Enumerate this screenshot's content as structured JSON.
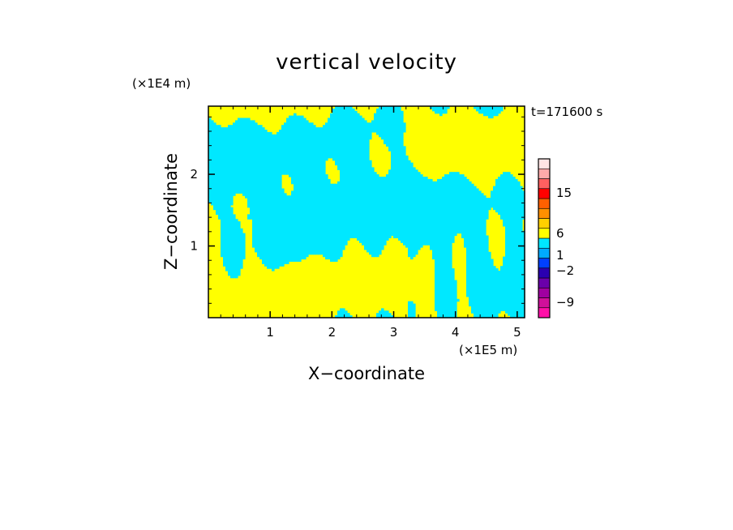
{
  "chart_data": {
    "type": "heatmap",
    "title": "vertical velocity",
    "xlabel": "X−coordinate",
    "ylabel": "Z−coordinate",
    "x_unit": "(×1E5 m)",
    "y_unit": "(×1E4 m)",
    "time_label": "t=171600 s",
    "xlim": [
      0,
      5.12
    ],
    "ylim": [
      0,
      2.95
    ],
    "xticks": [
      1,
      2,
      3,
      4,
      5
    ],
    "yticks": [
      1,
      2
    ],
    "x_tick_labels": [
      "1",
      "2",
      "3",
      "4",
      "5"
    ],
    "y_tick_labels": [
      "1",
      "2"
    ],
    "grid": false,
    "field_description_colors": {
      "upward": "#ffff00",
      "downward": "#00e8ff"
    },
    "colorbar": {
      "bands": [
        {
          "color": "#ff10a8"
        },
        {
          "color": "#d0109a"
        },
        {
          "color": "#a000a0"
        },
        {
          "color": "#6a00aa"
        },
        {
          "color": "#2a00b0"
        },
        {
          "color": "#0040ff"
        },
        {
          "color": "#00aaff"
        },
        {
          "color": "#00e8ff"
        },
        {
          "color": "#ffff00"
        },
        {
          "color": "#ffd000"
        },
        {
          "color": "#ff9000"
        },
        {
          "color": "#ff6000"
        },
        {
          "color": "#ff0000"
        },
        {
          "color": "#ff6060"
        },
        {
          "color": "#ffaaaa"
        },
        {
          "color": "#ffe4e4"
        }
      ],
      "labels": [
        "15",
        "6",
        "1",
        "−2",
        "−9"
      ]
    }
  }
}
